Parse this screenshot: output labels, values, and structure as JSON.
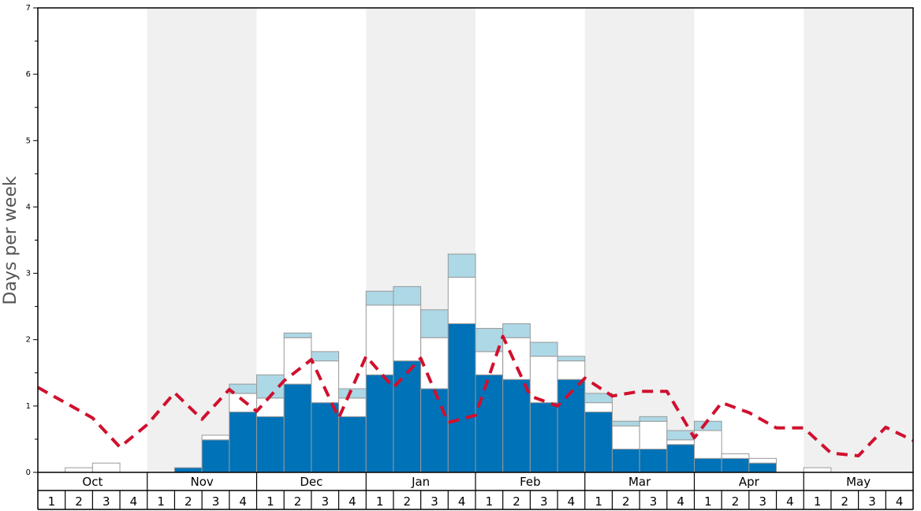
{
  "chart_data": {
    "type": "bar",
    "ylabel": "Days per week",
    "ylim": [
      0,
      7
    ],
    "yticks": [
      "0",
      "1",
      "2",
      "3",
      "4",
      "5",
      "6",
      "7"
    ],
    "months": [
      "Oct",
      "Nov",
      "Dec",
      "Jan",
      "Feb",
      "Mar",
      "Apr",
      "May"
    ],
    "week_labels": [
      "1",
      "2",
      "3",
      "4"
    ],
    "colors": {
      "dark": "#0072b8",
      "light": "#add8e6",
      "white": "#ffffff",
      "line": "#d0102e",
      "shade": "#f0f0f0"
    },
    "series": [
      {
        "values": [
          0,
          0,
          0,
          0,
          0,
          0.07,
          0.49,
          0.91,
          0.84,
          1.33,
          1.05,
          0.84,
          1.47,
          1.68,
          1.26,
          2.24,
          1.47,
          1.4,
          1.05,
          1.4,
          0.91,
          0.35,
          0.35,
          0.42,
          0.21,
          0.21,
          0.14,
          0,
          0,
          0,
          0,
          0
        ]
      },
      {
        "values": [
          0,
          0.07,
          0.14,
          0,
          0,
          0,
          0.07,
          0.28,
          0.28,
          0.7,
          0.63,
          0.28,
          1.05,
          0.84,
          0.77,
          0.7,
          0.35,
          0.63,
          0.7,
          0.28,
          0.14,
          0.35,
          0.42,
          0.07,
          0.42,
          0.07,
          0.07,
          0,
          0.07,
          0,
          0,
          0
        ]
      },
      {
        "values": [
          0,
          0,
          0,
          0,
          0,
          0,
          0,
          0.14,
          0.35,
          0.07,
          0.14,
          0.14,
          0.21,
          0.28,
          0.42,
          0.35,
          0.35,
          0.21,
          0.21,
          0.07,
          0.14,
          0.07,
          0.07,
          0.14,
          0.14,
          0,
          0,
          0,
          0,
          0,
          0,
          0
        ]
      }
    ],
    "line": {
      "values": [
        1.28,
        1.05,
        0.82,
        0.38,
        0.72,
        1.2,
        0.8,
        1.25,
        0.92,
        1.38,
        1.7,
        0.82,
        1.75,
        1.28,
        1.72,
        0.75,
        0.86,
        2.05,
        1.15,
        1.0,
        1.42,
        1.15,
        1.22,
        1.22,
        0.52,
        1.05,
        0.9,
        0.67,
        0.67,
        0.29,
        0.25,
        0.68,
        0.48
      ]
    }
  }
}
